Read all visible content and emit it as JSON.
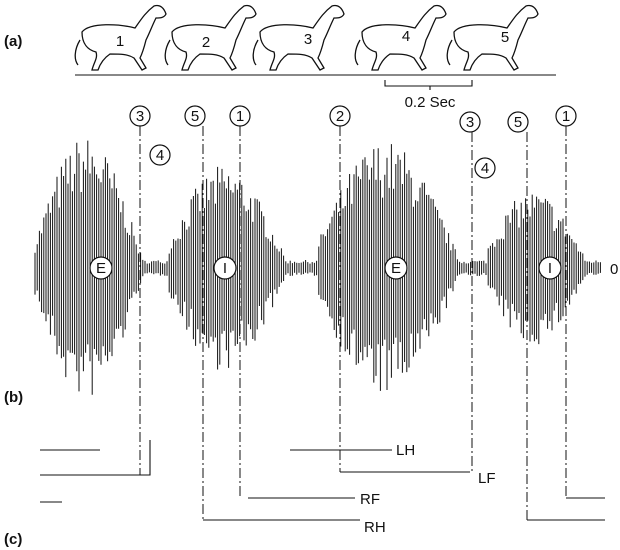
{
  "panel_labels": [
    "(a)",
    "(b)",
    "(c)"
  ],
  "horses": [
    "1",
    "2",
    "3",
    "4",
    "5"
  ],
  "scale": "0.2 Sec",
  "footfalls": [
    "3",
    "4",
    "5",
    "1",
    "2",
    "3",
    "4",
    "5",
    "1"
  ],
  "phases": [
    "E",
    "I",
    "E",
    "I"
  ],
  "baseline": "0",
  "limbs": [
    "LH",
    "LF",
    "RF",
    "RH"
  ]
}
